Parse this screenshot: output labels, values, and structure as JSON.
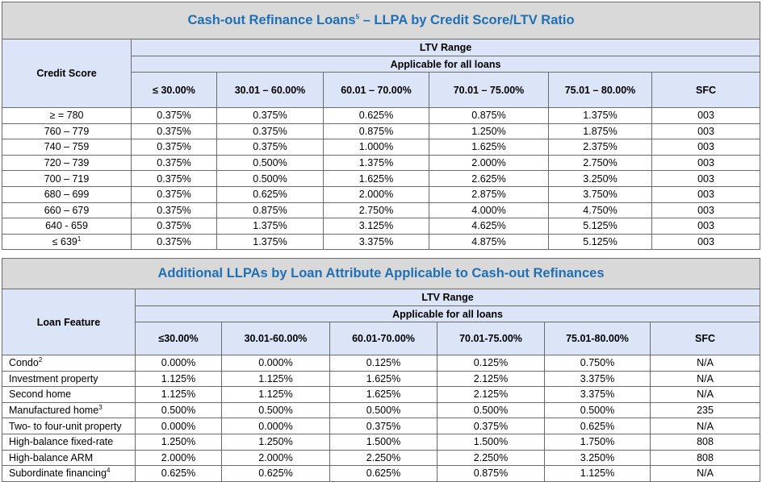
{
  "table1": {
    "title": "Cash-out Refinance Loans",
    "title_sup": "5",
    "title_suffix": " – LLPA by Credit Score/LTV Ratio",
    "row_header": "Credit Score",
    "group_header": "LTV Range",
    "sub_header": "Applicable for all loans",
    "columns": [
      "≤ 30.00%",
      "30.01 – 60.00%",
      "60.01 – 70.00%",
      "70.01 – 75.00%",
      "75.01 – 80.00%",
      "SFC"
    ],
    "rows": [
      {
        "label": "≥ = 780",
        "sup": "",
        "values": [
          "0.375%",
          "0.375%",
          "0.625%",
          "0.875%",
          "1.375%",
          "003"
        ]
      },
      {
        "label": "760 – 779",
        "sup": "",
        "values": [
          "0.375%",
          "0.375%",
          "0.875%",
          "1.250%",
          "1.875%",
          "003"
        ]
      },
      {
        "label": "740 – 759",
        "sup": "",
        "values": [
          "0.375%",
          "0.375%",
          "1.000%",
          "1.625%",
          "2.375%",
          "003"
        ]
      },
      {
        "label": "720 – 739",
        "sup": "",
        "values": [
          "0.375%",
          "0.500%",
          "1.375%",
          "2.000%",
          "2.750%",
          "003"
        ]
      },
      {
        "label": "700 – 719",
        "sup": "",
        "values": [
          "0.375%",
          "0.500%",
          "1.625%",
          "2.625%",
          "3.250%",
          "003"
        ]
      },
      {
        "label": "680 – 699",
        "sup": "",
        "values": [
          "0.375%",
          "0.625%",
          "2.000%",
          "2.875%",
          "3.750%",
          "003"
        ]
      },
      {
        "label": "660 – 679",
        "sup": "",
        "values": [
          "0.375%",
          "0.875%",
          "2.750%",
          "4.000%",
          "4.750%",
          "003"
        ]
      },
      {
        "label": "640 - 659",
        "sup": "",
        "values": [
          "0.375%",
          "1.375%",
          "3.125%",
          "4.625%",
          "5.125%",
          "003"
        ]
      },
      {
        "label": "≤ 639",
        "sup": "1",
        "values": [
          "0.375%",
          "1.375%",
          "3.375%",
          "4.875%",
          "5.125%",
          "003"
        ]
      }
    ]
  },
  "table2": {
    "title": "Additional LLPAs by Loan Attribute Applicable to Cash-out Refinances",
    "row_header": "Loan Feature",
    "group_header": "LTV Range",
    "sub_header": "Applicable for all loans",
    "columns": [
      "≤30.00%",
      "30.01-60.00%",
      "60.01-70.00%",
      "70.01-75.00%",
      "75.01-80.00%",
      "SFC"
    ],
    "rows": [
      {
        "label": "Condo",
        "sup": "2",
        "values": [
          "0.000%",
          "0.000%",
          "0.125%",
          "0.125%",
          "0.750%",
          "N/A"
        ]
      },
      {
        "label": "Investment property",
        "sup": "",
        "values": [
          "1.125%",
          "1.125%",
          "1.625%",
          "2.125%",
          "3.375%",
          "N/A"
        ]
      },
      {
        "label": "Second home",
        "sup": "",
        "values": [
          "1.125%",
          "1.125%",
          "1.625%",
          "2.125%",
          "3.375%",
          "N/A"
        ]
      },
      {
        "label": "Manufactured home",
        "sup": "3",
        "values": [
          "0.500%",
          "0.500%",
          "0.500%",
          "0.500%",
          "0.500%",
          "235"
        ]
      },
      {
        "label": "Two- to four-unit property",
        "sup": "",
        "values": [
          "0.000%",
          "0.000%",
          "0.375%",
          "0.375%",
          "0.625%",
          "N/A"
        ]
      },
      {
        "label": "High-balance fixed-rate",
        "sup": "",
        "values": [
          "1.250%",
          "1.250%",
          "1.500%",
          "1.500%",
          "1.750%",
          "808"
        ]
      },
      {
        "label": "High-balance ARM",
        "sup": "",
        "values": [
          "2.000%",
          "2.000%",
          "2.250%",
          "2.250%",
          "3.250%",
          "808"
        ]
      },
      {
        "label": "Subordinate financing",
        "sup": "4",
        "values": [
          "0.625%",
          "0.625%",
          "0.625%",
          "0.875%",
          "1.125%",
          "N/A"
        ]
      }
    ]
  }
}
